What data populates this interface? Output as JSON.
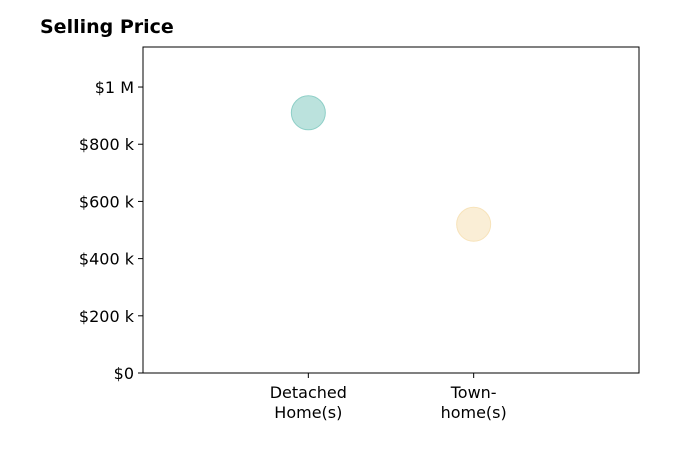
{
  "chart_data": {
    "type": "scatter",
    "title": "Selling Price",
    "xlabel": "",
    "ylabel": "",
    "categories": [
      [
        "Detached",
        "Home(s)"
      ],
      [
        "Town-",
        "home(s)"
      ]
    ],
    "points": [
      {
        "category": 0,
        "value": 910000,
        "color": "#8ecfc7"
      },
      {
        "category": 1,
        "value": 520000,
        "color": "#f7e3ba"
      }
    ],
    "y_ticks": [
      {
        "value": 0,
        "label": "$0"
      },
      {
        "value": 200000,
        "label": "$200 k"
      },
      {
        "value": 400000,
        "label": "$400 k"
      },
      {
        "value": 600000,
        "label": "$600 k"
      },
      {
        "value": 800000,
        "label": "$800 k"
      },
      {
        "value": 1000000,
        "label": "$1 M"
      }
    ],
    "ylim": [
      0,
      1140000
    ],
    "xlim": [
      -1,
      2
    ],
    "grid": false,
    "legend": "none"
  }
}
